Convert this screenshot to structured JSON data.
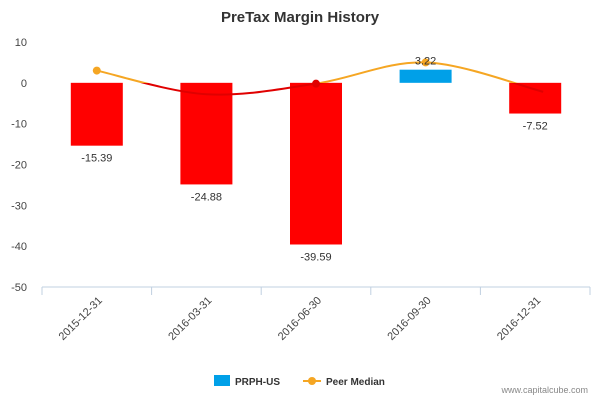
{
  "chart_data": {
    "type": "bar",
    "title": "PreTax Margin History",
    "categories": [
      "2015-12-31",
      "2016-03-31",
      "2016-06-30",
      "2016-09-30",
      "2016-12-31"
    ],
    "series": [
      {
        "name": "PRPH-US",
        "type": "bar",
        "values": [
          -15.39,
          -24.88,
          -39.59,
          3.22,
          -7.52
        ],
        "data_labels": [
          "-15.39",
          "-24.88",
          "-39.59",
          "3.22",
          "-7.52"
        ],
        "color_positive": "#00a0e8",
        "color_negative": "#ff0000"
      },
      {
        "name": "Peer Median",
        "type": "line",
        "values": [
          3.0,
          null,
          -0.2,
          5.0,
          null
        ],
        "color": "#f5a623",
        "color_below_zero": "#e00000"
      }
    ],
    "ylim": [
      -50,
      10
    ],
    "yticks": [
      "10",
      "0",
      "-10",
      "-20",
      "-30",
      "-40",
      "-50"
    ],
    "yticks_values": [
      10,
      0,
      -10,
      -20,
      -30,
      -40,
      -50
    ],
    "xlabel": "",
    "ylabel": "",
    "grid": false,
    "legend": "bottom-center"
  },
  "legend": [
    {
      "label": "PRPH-US",
      "marker": "square",
      "color": "#00a0e8"
    },
    {
      "label": "Peer Median",
      "marker": "line-dot",
      "color": "#f5a623"
    }
  ],
  "footer": "www.capitalcube.com"
}
